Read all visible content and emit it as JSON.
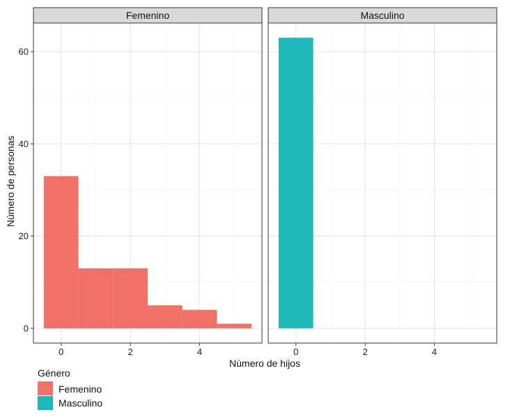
{
  "chart_data": {
    "type": "bar",
    "xlabel": "Número de hijos",
    "ylabel": "Número de personas",
    "xlim": [
      -0.8,
      5.8
    ],
    "ylim": [
      -3.2,
      66.2
    ],
    "x_ticks": [
      "0",
      "2",
      "4"
    ],
    "y_ticks": [
      "0",
      "20",
      "40",
      "60"
    ],
    "grid": true,
    "legend": {
      "title": "Género",
      "position": "bottom-left",
      "entries": [
        "Femenino",
        "Masculino"
      ]
    },
    "colors": {
      "Femenino": "#F07167",
      "Masculino": "#1DB7B9"
    },
    "panels": [
      {
        "name": "Femenino",
        "bins": [
          {
            "x": 0,
            "value": 33
          },
          {
            "x": 1,
            "value": 13
          },
          {
            "x": 2,
            "value": 13
          },
          {
            "x": 3,
            "value": 5
          },
          {
            "x": 4,
            "value": 4
          },
          {
            "x": 5,
            "value": 1
          }
        ]
      },
      {
        "name": "Masculino",
        "bins": [
          {
            "x": 0,
            "value": 63
          }
        ]
      }
    ]
  }
}
